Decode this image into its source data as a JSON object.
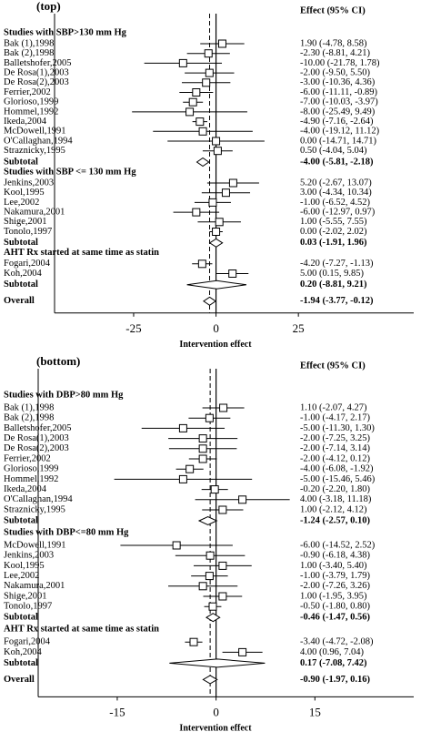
{
  "chart_data": [
    {
      "type": "forest",
      "title": "(top)",
      "effect_header": "Effect (95% CI)",
      "xlabel": "Intervention effect",
      "xlim": [
        -49,
        60
      ],
      "xticks": [
        -25,
        0,
        25
      ],
      "groups": [
        {
          "name": "Studies with SBP>130 mm Hg",
          "studies": [
            {
              "name": "Bak (1),1998",
              "value": 1.9,
              "lower": -4.78,
              "upper": 8.58,
              "value_label": "1.90 (-4.78, 8.58)"
            },
            {
              "name": "Bak (2),1998",
              "value": -2.3,
              "lower": -8.81,
              "upper": 4.21,
              "value_label": "-2.30 (-8.81, 4.21)"
            },
            {
              "name": "Balletshofer,2005",
              "value": -10,
              "lower": -21.78,
              "upper": 1.78,
              "value_label": "-10.00 (-21.78, 1.78)"
            },
            {
              "name": "De Rosa(1),2003",
              "value": -2,
              "lower": -9.5,
              "upper": 5.5,
              "value_label": "-2.00 (-9.50, 5.50)"
            },
            {
              "name": "De Rosa(2),2003",
              "value": -3,
              "lower": -10.36,
              "upper": 4.36,
              "value_label": "-3.00 (-10.36, 4.36)"
            },
            {
              "name": "Ferrier,2002",
              "value": -6,
              "lower": -11.11,
              "upper": -0.89,
              "value_label": "-6.00 (-11.11, -0.89)"
            },
            {
              "name": "Glorioso,1999",
              "value": -7,
              "lower": -10.03,
              "upper": -3.97,
              "value_label": "-7.00 (-10.03, -3.97)"
            },
            {
              "name": "Hommel,1992",
              "value": -8,
              "lower": -25.49,
              "upper": 9.49,
              "value_label": "-8.00 (-25.49, 9.49)"
            },
            {
              "name": "Ikeda,2004",
              "value": -4.9,
              "lower": -7.16,
              "upper": -2.64,
              "value_label": "-4.90 (-7.16, -2.64)"
            },
            {
              "name": "McDowell,1991",
              "value": -4,
              "lower": -19.12,
              "upper": 11.12,
              "value_label": "-4.00 (-19.12, 11.12)"
            },
            {
              "name": "O'Callaghan,1994",
              "value": 0,
              "lower": -14.71,
              "upper": 14.71,
              "value_label": "0.00 (-14.71, 14.71)"
            },
            {
              "name": "Straznicky,1995",
              "value": 0.5,
              "lower": -4.04,
              "upper": 5.04,
              "value_label": "0.50 (-4.04, 5.04)"
            }
          ],
          "subtotal": {
            "name": "Subtotal",
            "value": -4,
            "lower": -5.81,
            "upper": -2.18,
            "value_label": "-4.00 (-5.81, -2.18)"
          }
        },
        {
          "name": "Studies with SBP <= 130 mm Hg",
          "studies": [
            {
              "name": "Jenkins,2003",
              "value": 5.2,
              "lower": -2.67,
              "upper": 13.07,
              "value_label": "5.20 (-2.67, 13.07)"
            },
            {
              "name": "Kool,1995",
              "value": 3,
              "lower": -4.34,
              "upper": 10.34,
              "value_label": "3.00 (-4.34, 10.34)"
            },
            {
              "name": "Lee,2002",
              "value": -1,
              "lower": -6.52,
              "upper": 4.52,
              "value_label": "-1.00 (-6.52, 4.52)"
            },
            {
              "name": "Nakamura,2001",
              "value": -6,
              "lower": -12.97,
              "upper": 0.97,
              "value_label": "-6.00 (-12.97, 0.97)"
            },
            {
              "name": "Shige,2001",
              "value": 1,
              "lower": -5.55,
              "upper": 7.55,
              "value_label": "1.00 (-5.55, 7.55)"
            },
            {
              "name": "Tonolo,1997",
              "value": 0,
              "lower": -2.02,
              "upper": 2.02,
              "value_label": "0.00 (-2.02, 2.02)"
            }
          ],
          "subtotal": {
            "name": "Subtotal",
            "value": 0.03,
            "lower": -1.91,
            "upper": 1.96,
            "value_label": "0.03 (-1.91, 1.96)"
          }
        },
        {
          "name": "AHT Rx started at same time as statin",
          "studies": [
            {
              "name": "Fogari,2004",
              "value": -4.2,
              "lower": -7.27,
              "upper": -1.13,
              "value_label": "-4.20 (-7.27, -1.13)"
            },
            {
              "name": "Koh,2004",
              "value": 5,
              "lower": 0.15,
              "upper": 9.85,
              "value_label": "5.00 (0.15, 9.85)"
            }
          ],
          "subtotal": {
            "name": "Subtotal",
            "value": 0.2,
            "lower": -8.81,
            "upper": 9.21,
            "value_label": "0.20 (-8.81, 9.21)"
          }
        }
      ],
      "overall": {
        "name": "Overall",
        "value": -1.94,
        "lower": -3.77,
        "upper": -0.12,
        "value_label": "-1.94 (-3.77, -0.12)"
      }
    },
    {
      "type": "forest",
      "title": "(bottom)",
      "effect_header": "Effect (95% CI)",
      "xlabel": "Intervention effect",
      "xlim": [
        -27,
        30
      ],
      "xticks": [
        -15,
        0,
        15
      ],
      "groups": [
        {
          "name": "Studies with DBP>80 mm Hg",
          "studies": [
            {
              "name": "Bak (1),1998",
              "value": 1.1,
              "lower": -2.07,
              "upper": 4.27,
              "value_label": "1.10 (-2.07, 4.27)"
            },
            {
              "name": "Bak (2),1998",
              "value": -1,
              "lower": -4.17,
              "upper": 2.17,
              "value_label": "-1.00 (-4.17, 2.17)"
            },
            {
              "name": "Balletshofer,2005",
              "value": -5,
              "lower": -11.3,
              "upper": 1.3,
              "value_label": "-5.00 (-11.30, 1.30)"
            },
            {
              "name": "De Rosa(1),2003",
              "value": -2,
              "lower": -7.25,
              "upper": 3.25,
              "value_label": "-2.00 (-7.25, 3.25)"
            },
            {
              "name": "De Rosa(2),2003",
              "value": -2,
              "lower": -7.14,
              "upper": 3.14,
              "value_label": "-2.00 (-7.14, 3.14)"
            },
            {
              "name": "Ferrier,2002",
              "value": -2,
              "lower": -4.12,
              "upper": 0.12,
              "value_label": "-2.00 (-4.12, 0.12)"
            },
            {
              "name": "Glorioso,1999",
              "value": -4,
              "lower": -6.08,
              "upper": -1.92,
              "value_label": "-4.00 (-6.08, -1.92)"
            },
            {
              "name": "Hommel,1992",
              "value": -5,
              "lower": -15.46,
              "upper": 5.46,
              "value_label": "-5.00 (-15.46, 5.46)"
            },
            {
              "name": "Ikeda,2004",
              "value": -0.2,
              "lower": -2.2,
              "upper": 1.8,
              "value_label": "-0.20 (-2.20, 1.80)"
            },
            {
              "name": "O'Callaghan,1994",
              "value": 4,
              "lower": -3.18,
              "upper": 11.18,
              "value_label": "4.00 (-3.18, 11.18)"
            },
            {
              "name": "Straznicky,1995",
              "value": 1,
              "lower": -2.12,
              "upper": 4.12,
              "value_label": "1.00 (-2.12, 4.12)"
            }
          ],
          "subtotal": {
            "name": "Subtotal",
            "value": -1.24,
            "lower": -2.57,
            "upper": 0.1,
            "value_label": "-1.24 (-2.57, 0.10)"
          }
        },
        {
          "name": "Studies with DBP<=80 mm Hg",
          "studies": [
            {
              "name": "McDowell,1991",
              "value": -6,
              "lower": -14.52,
              "upper": 2.52,
              "value_label": "-6.00 (-14.52, 2.52)"
            },
            {
              "name": "Jenkins,2003",
              "value": -0.9,
              "lower": -6.18,
              "upper": 4.38,
              "value_label": "-0.90 (-6.18, 4.38)"
            },
            {
              "name": "Kool,1995",
              "value": 1,
              "lower": -3.4,
              "upper": 5.4,
              "value_label": "1.00 (-3.40, 5.40)"
            },
            {
              "name": "Lee,2002",
              "value": -1,
              "lower": -3.79,
              "upper": 1.79,
              "value_label": "-1.00 (-3.79, 1.79)"
            },
            {
              "name": "Nakamura,2001",
              "value": -2,
              "lower": -7.26,
              "upper": 3.26,
              "value_label": "-2.00 (-7.26, 3.26)"
            },
            {
              "name": "Shige,2001",
              "value": 1,
              "lower": -1.95,
              "upper": 3.95,
              "value_label": "1.00 (-1.95, 3.95)"
            },
            {
              "name": "Tonolo,1997",
              "value": -0.5,
              "lower": -1.8,
              "upper": 0.8,
              "value_label": "-0.50 (-1.80, 0.80)"
            }
          ],
          "subtotal": {
            "name": "Subtotal",
            "value": -0.46,
            "lower": -1.47,
            "upper": 0.56,
            "value_label": "-0.46 (-1.47, 0.56)"
          }
        },
        {
          "name": "AHT Rx started at same time as statin",
          "studies": [
            {
              "name": "Fogari,2004",
              "value": -3.4,
              "lower": -4.72,
              "upper": -2.08,
              "value_label": "-3.40 (-4.72, -2.08)"
            },
            {
              "name": "Koh,2004",
              "value": 4,
              "lower": 0.96,
              "upper": 7.04,
              "value_label": "4.00 (0.96, 7.04)"
            }
          ],
          "subtotal": {
            "name": "Subtotal",
            "value": 0.17,
            "lower": -7.08,
            "upper": 7.42,
            "value_label": "0.17 (-7.08, 7.42)"
          }
        }
      ],
      "overall": {
        "name": "Overall",
        "value": -0.9,
        "lower": -1.97,
        "upper": 0.16,
        "value_label": "-0.90 (-1.97, 0.16)"
      }
    }
  ]
}
